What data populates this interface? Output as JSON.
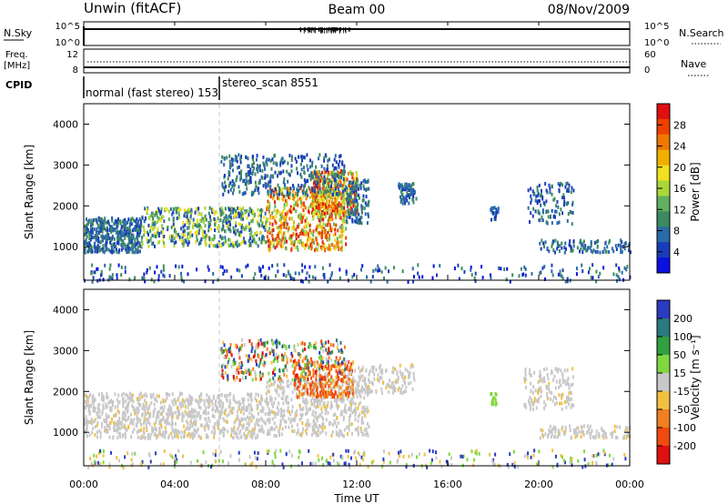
{
  "header": {
    "station": "Unwin (fitACF)",
    "beam": "Beam 00",
    "date": "08/Nov/2009"
  },
  "status_panels": {
    "nsky_label": "N.Sky",
    "nsky_ticks": [
      "10^5",
      "10^0"
    ],
    "nsearch_label": "N.Search",
    "nsearch_ticks": [
      "10^5",
      "10^0"
    ],
    "freq_label": "Freq.",
    "freq_unit": "[MHz]",
    "freq_ticks": [
      "12",
      "8"
    ],
    "nave_label": "Nave",
    "nave_ticks": [
      "60",
      "0"
    ],
    "cpid_label": "CPID",
    "cpid_segments": [
      {
        "label": "normal (fast stereo) 153",
        "start_hour": 0
      },
      {
        "label": "stereo_scan 8551",
        "start_hour": 6
      }
    ]
  },
  "power_colorbar": {
    "label": "Power [dB]",
    "ticks": [
      "28",
      "24",
      "20",
      "16",
      "12",
      "8",
      "4"
    ],
    "colors": [
      "#e01010",
      "#f04000",
      "#f07800",
      "#f0b000",
      "#f0e020",
      "#a8d838",
      "#60b060",
      "#3c8a60",
      "#2a6aa8",
      "#1a3cb8",
      "#0a10e0"
    ]
  },
  "velocity_colorbar": {
    "label": "Velocity [m s⁻¹]",
    "ticks": [
      "200",
      "100",
      "50",
      "15",
      "-15",
      "-50",
      "-100",
      "-200"
    ],
    "colors": [
      "#2a3cc0",
      "#2a7a80",
      "#32a040",
      "#80d840",
      "#c8c8c8",
      "#f0c040",
      "#f08020",
      "#f04a10",
      "#e01010"
    ]
  },
  "chart_data": {
    "type": "heatmap",
    "xlabel": "Time UT",
    "xticks": [
      "00:00",
      "04:00",
      "08:00",
      "12:00",
      "16:00",
      "20:00",
      "00:00"
    ],
    "xlim_hours": [
      0,
      24
    ],
    "ylabel": "Slant Range [km]",
    "yticks": [
      "1000",
      "2000",
      "3000",
      "4000"
    ],
    "ylim_km": [
      180,
      4500
    ],
    "panels": [
      {
        "name": "power",
        "units": "dB",
        "scatter_regions": [
          {
            "t0": 0.0,
            "t1": 2.5,
            "r0": 900,
            "r1": 1750,
            "n": 420,
            "mode": "edge"
          },
          {
            "t0": 2.5,
            "t1": 8.0,
            "r0": 1050,
            "r1": 2000,
            "n": 520,
            "mode": "band"
          },
          {
            "t0": 8.0,
            "t1": 11.5,
            "r0": 950,
            "r1": 2500,
            "n": 560,
            "mode": "core"
          },
          {
            "t0": 10.0,
            "t1": 12.0,
            "r0": 1800,
            "r1": 2900,
            "n": 380,
            "mode": "core"
          },
          {
            "t0": 6.0,
            "t1": 11.5,
            "r0": 2300,
            "r1": 3300,
            "n": 360,
            "mode": "edge"
          },
          {
            "t0": 11.5,
            "t1": 12.5,
            "r0": 1600,
            "r1": 2700,
            "n": 120,
            "mode": "edge"
          },
          {
            "t0": 13.8,
            "t1": 14.6,
            "r0": 2100,
            "r1": 2600,
            "n": 70,
            "mode": "edge"
          },
          {
            "t0": 17.8,
            "t1": 18.2,
            "r0": 1700,
            "r1": 2000,
            "n": 20,
            "mode": "edge"
          },
          {
            "t0": 19.5,
            "t1": 21.5,
            "r0": 1600,
            "r1": 2600,
            "n": 110,
            "mode": "edge"
          },
          {
            "t0": 20.0,
            "t1": 24.0,
            "r0": 900,
            "r1": 1200,
            "n": 110,
            "mode": "edge"
          },
          {
            "t0": 0.0,
            "t1": 24.0,
            "r0": 180,
            "r1": 600,
            "n": 240,
            "mode": "sparse"
          }
        ]
      },
      {
        "name": "velocity",
        "units": "m/s",
        "scatter_regions": [
          {
            "t0": 0.0,
            "t1": 8.0,
            "r0": 900,
            "r1": 2000,
            "n": 900,
            "mode": "gray"
          },
          {
            "t0": 8.0,
            "t1": 12.5,
            "r0": 950,
            "r1": 2300,
            "n": 520,
            "mode": "gray"
          },
          {
            "t0": 9.2,
            "t1": 11.8,
            "r0": 1900,
            "r1": 2800,
            "n": 260,
            "mode": "orange"
          },
          {
            "t0": 6.0,
            "t1": 11.5,
            "r0": 2300,
            "r1": 3300,
            "n": 340,
            "mode": "mixed"
          },
          {
            "t0": 11.5,
            "t1": 14.5,
            "r0": 2000,
            "r1": 2700,
            "n": 140,
            "mode": "gray"
          },
          {
            "t0": 17.8,
            "t1": 18.2,
            "r0": 1700,
            "r1": 2000,
            "n": 20,
            "mode": "green"
          },
          {
            "t0": 19.3,
            "t1": 21.5,
            "r0": 1600,
            "r1": 2600,
            "n": 140,
            "mode": "gray"
          },
          {
            "t0": 20.0,
            "t1": 24.0,
            "r0": 900,
            "r1": 1200,
            "n": 110,
            "mode": "gray"
          },
          {
            "t0": 0.0,
            "t1": 24.0,
            "r0": 180,
            "r1": 600,
            "n": 260,
            "mode": "sparse"
          }
        ]
      }
    ]
  }
}
